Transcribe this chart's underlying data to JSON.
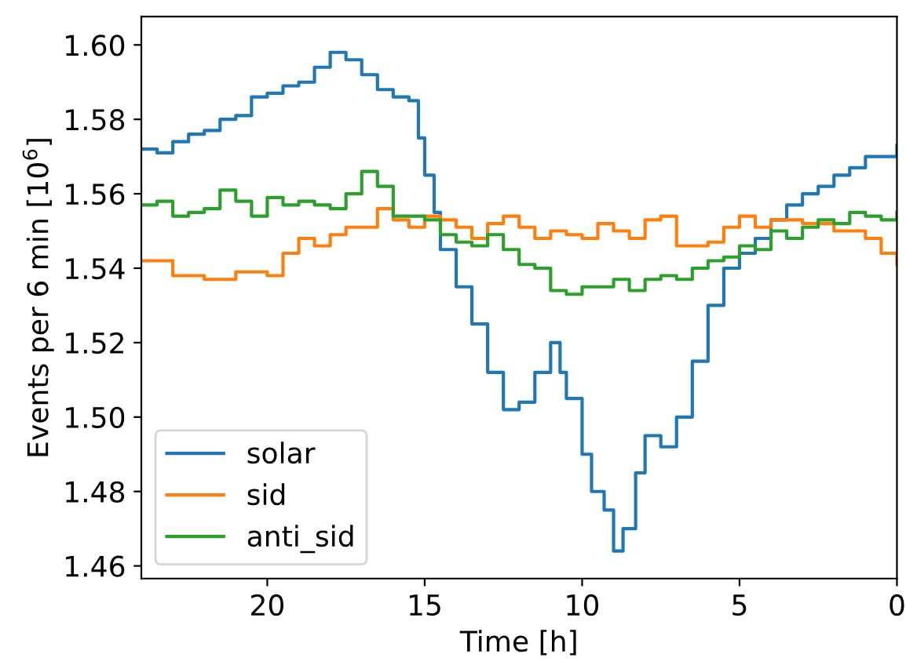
{
  "chart_data": {
    "type": "step",
    "xlabel": "Time [h]",
    "ylabel": "Events per 6 min [10$^{6}$]",
    "xlim": [
      24,
      0
    ],
    "xticks": [
      20,
      15,
      10,
      5,
      0
    ],
    "ylim": [
      1.4566,
      1.6076
    ],
    "yticks": [
      {
        "value": 1.46,
        "label": "1.46"
      },
      {
        "value": 1.48,
        "label": "1.48"
      },
      {
        "value": 1.5,
        "label": "1.50"
      },
      {
        "value": 1.52,
        "label": "1.52"
      },
      {
        "value": 1.54,
        "label": "1.54"
      },
      {
        "value": 1.56,
        "label": "1.56"
      },
      {
        "value": 1.58,
        "label": "1.58"
      },
      {
        "value": 1.6,
        "label": "1.60"
      }
    ],
    "legend": "bottom left",
    "grid": false,
    "line_style": "solid",
    "marker": "none",
    "series": [
      {
        "name": "solar",
        "color": "#1f77b4",
        "x": [
          24,
          23.5,
          23,
          22.5,
          22,
          21.5,
          21,
          20.5,
          20,
          19.5,
          19,
          18.5,
          18,
          17.5,
          17,
          16.5,
          16,
          15.5,
          15.2,
          15,
          14.7,
          14.5,
          14,
          13.5,
          13,
          12.5,
          12,
          11.5,
          11,
          10.7,
          10.5,
          10,
          9.7,
          9.3,
          9,
          8.7,
          8.3,
          8,
          7.5,
          7,
          6.5,
          6,
          5.5,
          5,
          4.5,
          4,
          3.5,
          3,
          2.5,
          2,
          1.5,
          1,
          0.5,
          0
        ],
        "values": [
          1.572,
          1.571,
          1.574,
          1.576,
          1.577,
          1.58,
          1.581,
          1.586,
          1.587,
          1.589,
          1.59,
          1.594,
          1.598,
          1.596,
          1.592,
          1.588,
          1.586,
          1.585,
          1.575,
          1.565,
          1.555,
          1.545,
          1.535,
          1.525,
          1.512,
          1.502,
          1.504,
          1.512,
          1.52,
          1.512,
          1.505,
          1.49,
          1.48,
          1.475,
          1.464,
          1.47,
          1.485,
          1.495,
          1.492,
          1.5,
          1.515,
          1.53,
          1.54,
          1.544,
          1.548,
          1.553,
          1.557,
          1.56,
          1.562,
          1.565,
          1.567,
          1.57,
          1.57,
          1.573
        ]
      },
      {
        "name": "sid",
        "color": "#ff7f0e",
        "x": [
          24,
          23,
          22,
          21,
          20,
          19.5,
          19,
          18.5,
          18,
          17.5,
          17,
          16.5,
          16,
          15.5,
          15,
          14.5,
          14,
          13.5,
          13,
          12.5,
          12,
          11.5,
          11,
          10.5,
          10,
          9.5,
          9,
          8.5,
          8,
          7.5,
          7,
          6.5,
          6,
          5.5,
          5,
          4.5,
          4,
          3,
          2,
          1,
          0.5,
          0
        ],
        "values": [
          1.542,
          1.538,
          1.537,
          1.539,
          1.538,
          1.544,
          1.548,
          1.546,
          1.549,
          1.551,
          1.551,
          1.556,
          1.553,
          1.551,
          1.554,
          1.553,
          1.551,
          1.548,
          1.552,
          1.554,
          1.551,
          1.548,
          1.55,
          1.549,
          1.548,
          1.552,
          1.55,
          1.548,
          1.553,
          1.554,
          1.546,
          1.546,
          1.547,
          1.551,
          1.554,
          1.551,
          1.553,
          1.552,
          1.55,
          1.548,
          1.544,
          1.541
        ]
      },
      {
        "name": "anti_sid",
        "color": "#2ca02c",
        "x": [
          24,
          23.5,
          23,
          22.5,
          22,
          21.5,
          21,
          20.5,
          20,
          19.5,
          19,
          18.5,
          18,
          17.5,
          17,
          16.5,
          16,
          15.5,
          15,
          14.5,
          14,
          13.5,
          13,
          12.5,
          12,
          11.5,
          11,
          10.5,
          10,
          9.5,
          9,
          8.5,
          8,
          7.5,
          7,
          6.5,
          6,
          5.5,
          5,
          4.5,
          4,
          3.5,
          3,
          2.5,
          2,
          1.5,
          1,
          0.5,
          0
        ],
        "values": [
          1.557,
          1.558,
          1.554,
          1.555,
          1.556,
          1.561,
          1.558,
          1.554,
          1.559,
          1.557,
          1.558,
          1.557,
          1.556,
          1.56,
          1.566,
          1.562,
          1.554,
          1.554,
          1.553,
          1.549,
          1.547,
          1.546,
          1.549,
          1.545,
          1.541,
          1.54,
          1.534,
          1.533,
          1.535,
          1.535,
          1.537,
          1.534,
          1.537,
          1.538,
          1.537,
          1.54,
          1.542,
          1.543,
          1.546,
          1.545,
          1.55,
          1.548,
          1.551,
          1.553,
          1.552,
          1.555,
          1.554,
          1.553,
          1.555
        ]
      }
    ]
  }
}
